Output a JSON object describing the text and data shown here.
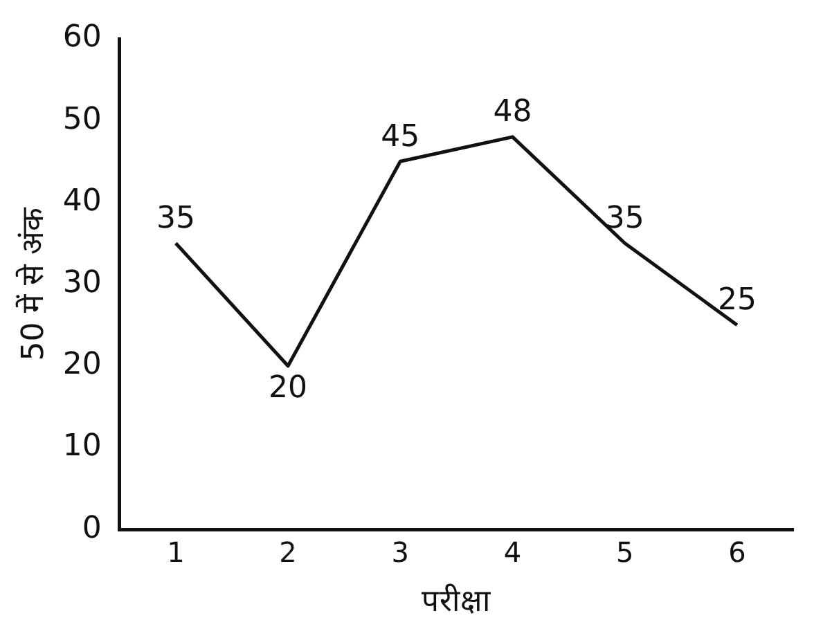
{
  "chart_data": {
    "type": "line",
    "xlabel": "परीक्षा",
    "ylabel": "50 में से अंक",
    "categories": [
      "1",
      "2",
      "3",
      "4",
      "5",
      "6"
    ],
    "values": [
      35,
      20,
      45,
      48,
      35,
      25
    ],
    "color": "#111111",
    "ylim": [
      0,
      60
    ],
    "yticks": [
      0,
      10,
      20,
      30,
      40,
      50,
      60
    ],
    "data_labels": true,
    "grid": false,
    "legend": false,
    "marker": "none",
    "line_style": "solid"
  }
}
